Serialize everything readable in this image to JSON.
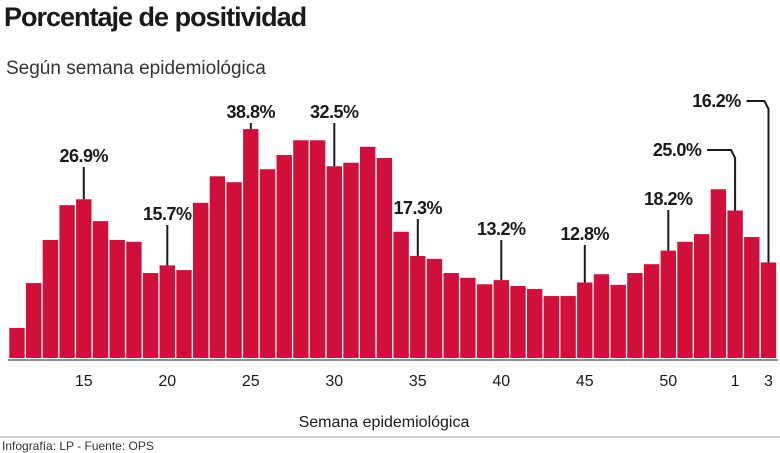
{
  "chart_data": {
    "type": "bar",
    "title": "Porcentaje de positividad",
    "subtitle": "Según semana epidemiológica",
    "x_label": "Semana epidemiológica",
    "source": "Infografía: LP - Fuente: OPS",
    "color": "#d0103a",
    "categories": [
      null,
      null,
      null,
      null,
      "15",
      null,
      null,
      null,
      null,
      "20",
      null,
      null,
      null,
      null,
      "25",
      null,
      null,
      null,
      null,
      "30",
      null,
      null,
      null,
      null,
      "35",
      null,
      null,
      null,
      null,
      "40",
      null,
      null,
      null,
      null,
      "45",
      null,
      null,
      null,
      null,
      "50",
      null,
      null,
      null,
      "1",
      null,
      "3"
    ],
    "values": [
      5.1,
      12.7,
      20.0,
      25.9,
      26.9,
      23.2,
      20.0,
      19.7,
      14.4,
      15.7,
      14.9,
      26.3,
      30.8,
      29.8,
      38.8,
      32.0,
      34.4,
      36.9,
      36.9,
      32.5,
      33.1,
      35.8,
      33.9,
      21.4,
      17.3,
      16.8,
      14.4,
      13.6,
      12.5,
      13.2,
      12.2,
      11.7,
      10.5,
      10.5,
      12.8,
      14.2,
      12.4,
      14.4,
      15.9,
      18.2,
      19.7,
      21.0,
      28.6,
      25.0,
      20.5,
      16.2
    ],
    "value_labels": [
      null,
      null,
      null,
      null,
      "26.9%",
      null,
      null,
      null,
      null,
      "15.7%",
      null,
      null,
      null,
      null,
      "38.8%",
      null,
      null,
      null,
      null,
      "32.5%",
      null,
      null,
      null,
      null,
      "17.3%",
      null,
      null,
      null,
      null,
      "13.2%",
      null,
      null,
      null,
      null,
      "12.8%",
      null,
      null,
      null,
      null,
      "18.2%",
      null,
      null,
      null,
      "25.0%",
      null,
      "16.2%"
    ]
  }
}
